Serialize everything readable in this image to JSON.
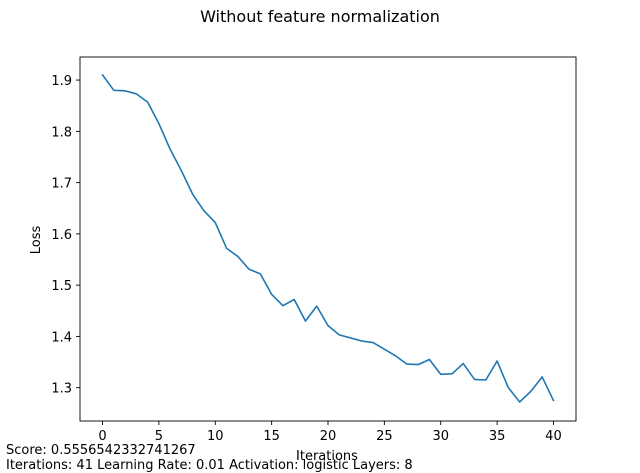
{
  "chart_data": {
    "type": "line",
    "title": "Without feature normalization",
    "xlabel": "Iterations",
    "ylabel": "Loss",
    "xlim": [
      -2,
      42
    ],
    "ylim": [
      1.235,
      1.945
    ],
    "x_ticks": [
      0,
      5,
      10,
      15,
      20,
      25,
      30,
      35,
      40
    ],
    "y_ticks": [
      1.3,
      1.4,
      1.5,
      1.6,
      1.7,
      1.8,
      1.9
    ],
    "grid": false,
    "line_color": "#1f77b4",
    "series": [
      {
        "x": [
          0,
          1,
          2,
          3,
          4,
          5,
          6,
          7,
          8,
          9,
          10,
          11,
          12,
          13,
          14,
          15,
          16,
          17,
          18,
          19,
          20,
          21,
          22,
          23,
          24,
          25,
          26,
          27,
          28,
          29,
          30,
          31,
          32,
          33,
          34,
          35,
          36,
          37,
          38,
          39,
          40
        ],
        "values": [
          1.91,
          1.88,
          1.879,
          1.873,
          1.857,
          1.815,
          1.765,
          1.723,
          1.677,
          1.645,
          1.622,
          1.572,
          1.556,
          1.531,
          1.522,
          1.482,
          1.46,
          1.472,
          1.43,
          1.459,
          1.421,
          1.403,
          1.397,
          1.391,
          1.388,
          1.375,
          1.362,
          1.346,
          1.345,
          1.355,
          1.326,
          1.327,
          1.347,
          1.316,
          1.315,
          1.352,
          1.3,
          1.272,
          1.293,
          1.321,
          1.275
        ]
      }
    ]
  },
  "footer": {
    "score": "Score: 0.5556542332741267",
    "params": "Iterations: 41 Learning Rate: 0.01 Activation: logistic Layers: 8"
  }
}
